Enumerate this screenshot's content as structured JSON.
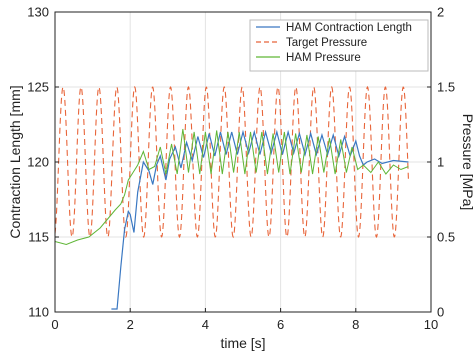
{
  "chart_data": {
    "type": "line",
    "xlabel": "time [s]",
    "ylabel_left": "Contraction Length [mm]",
    "ylabel_right": "Pressure [MPa]",
    "xlim": [
      0,
      10
    ],
    "ylim_left": [
      110,
      130
    ],
    "ylim_right": [
      0,
      2
    ],
    "x_ticks": [
      "0",
      "2",
      "4",
      "6",
      "8",
      "10"
    ],
    "y_left_ticks": [
      "110",
      "115",
      "120",
      "125",
      "130"
    ],
    "y_right_ticks": [
      "0",
      "0.5",
      "1",
      "1.5",
      "2"
    ],
    "grid": true,
    "legend_position": "top-right",
    "series": [
      {
        "name": "HAM Contraction Length",
        "axis": "left",
        "color": "#3a78c2",
        "style": "solid",
        "x": [
          1.5,
          1.65,
          1.75,
          1.85,
          1.95,
          2.0,
          2.1,
          2.2,
          2.35,
          2.5,
          2.6,
          2.7,
          2.8,
          2.95,
          3.05,
          3.2,
          3.35,
          3.5,
          3.65,
          3.8,
          3.95,
          4.1,
          4.25,
          4.4,
          4.55,
          4.7,
          4.85,
          5.0,
          5.15,
          5.3,
          5.45,
          5.6,
          5.75,
          5.9,
          6.05,
          6.2,
          6.35,
          6.5,
          6.65,
          6.8,
          6.95,
          7.1,
          7.25,
          7.4,
          7.55,
          7.7,
          7.85,
          8.0,
          8.1,
          8.2,
          8.3,
          8.5,
          8.7,
          9.0,
          9.4
        ],
        "values": [
          110.2,
          110.2,
          113.0,
          115.5,
          116.7,
          116.5,
          115.3,
          118.0,
          120.0,
          119.4,
          118.5,
          119.8,
          120.4,
          118.8,
          120.2,
          121.0,
          119.6,
          121.3,
          120.1,
          121.7,
          120.3,
          121.9,
          120.4,
          122.0,
          120.5,
          122.0,
          120.5,
          122.0,
          120.6,
          122.0,
          120.5,
          122.0,
          120.6,
          122.0,
          120.5,
          122.0,
          120.6,
          121.9,
          120.5,
          121.9,
          120.5,
          121.8,
          120.5,
          121.8,
          120.4,
          121.7,
          120.4,
          121.4,
          120.4,
          119.8,
          120.0,
          120.2,
          119.9,
          120.1,
          120.0
        ]
      },
      {
        "name": "Target Pressure",
        "axis": "right",
        "color": "#e8653a",
        "style": "dashed",
        "waveform": "sine",
        "center": 1.0,
        "amplitude": 0.5,
        "frequency_hz": 2.1,
        "x_range": [
          0,
          9.4
        ]
      },
      {
        "name": "HAM Pressure",
        "axis": "right",
        "color": "#5fb636",
        "style": "solid",
        "x": [
          0.0,
          0.3,
          0.6,
          0.9,
          1.2,
          1.4,
          1.6,
          1.75,
          1.85,
          1.95,
          2.05,
          2.2,
          2.35,
          2.5,
          2.65,
          2.8,
          2.95,
          3.1,
          3.25,
          3.4,
          3.55,
          3.7,
          3.85,
          4.0,
          4.15,
          4.3,
          4.45,
          4.6,
          4.75,
          4.9,
          5.05,
          5.2,
          5.35,
          5.5,
          5.65,
          5.8,
          5.95,
          6.1,
          6.25,
          6.4,
          6.55,
          6.7,
          6.85,
          7.0,
          7.15,
          7.3,
          7.45,
          7.6,
          7.75,
          7.9,
          8.05,
          8.2,
          8.4,
          8.6,
          8.8,
          9.0,
          9.2,
          9.4
        ],
        "values": [
          0.47,
          0.45,
          0.48,
          0.5,
          0.56,
          0.62,
          0.68,
          0.72,
          0.78,
          0.88,
          0.92,
          0.98,
          1.07,
          0.95,
          0.97,
          1.1,
          0.92,
          1.12,
          0.92,
          1.22,
          0.93,
          1.2,
          0.92,
          1.2,
          0.92,
          1.21,
          0.92,
          1.2,
          0.93,
          1.2,
          0.92,
          1.2,
          0.93,
          1.2,
          0.92,
          1.19,
          0.93,
          1.2,
          0.92,
          1.19,
          0.93,
          1.18,
          0.92,
          1.17,
          0.93,
          1.16,
          0.92,
          1.15,
          0.93,
          1.1,
          0.95,
          0.98,
          0.93,
          1.0,
          0.92,
          0.98,
          0.95,
          0.97
        ]
      }
    ]
  }
}
